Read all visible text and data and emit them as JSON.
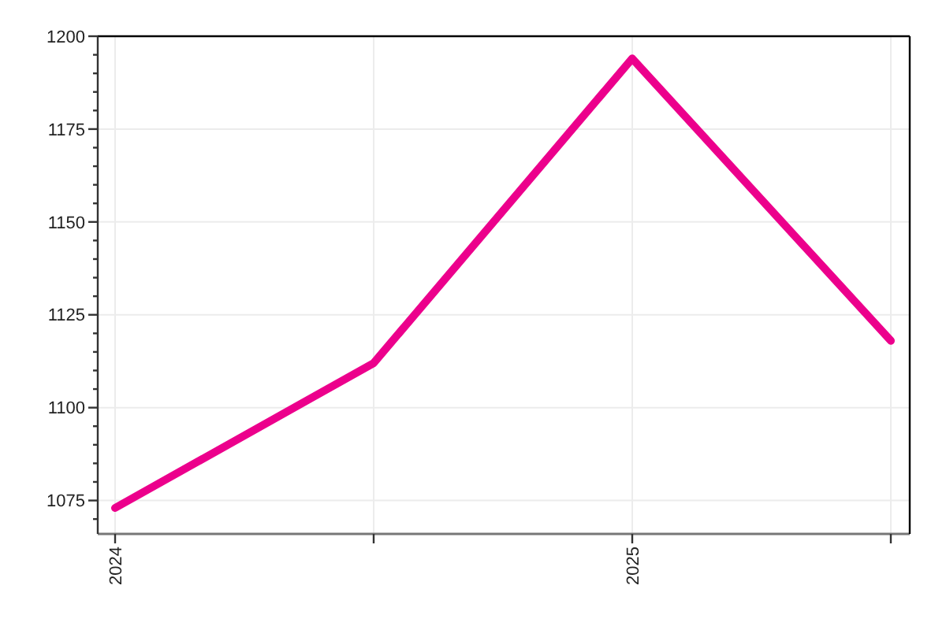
{
  "chart_data": {
    "type": "line",
    "categories": [
      "2024",
      null,
      "2025",
      null
    ],
    "series": [
      {
        "color": "#ec008c",
        "values": [
          1073,
          1112,
          1194,
          1118
        ]
      }
    ],
    "ylim": [
      1066,
      1200
    ],
    "yticks": [
      {
        "value": 1070,
        "label": null
      },
      1075,
      {
        "value": 1080,
        "label": null
      },
      {
        "value": 1085,
        "label": null
      },
      {
        "value": 1090,
        "label": null
      },
      {
        "value": 1095,
        "label": null
      },
      1100,
      {
        "value": 1105,
        "label": null
      },
      {
        "value": 1110,
        "label": null
      },
      {
        "value": 1115,
        "label": null
      },
      {
        "value": 1120,
        "label": null
      },
      1125,
      {
        "value": 1130,
        "label": null
      },
      {
        "value": 1135,
        "label": null
      },
      {
        "value": 1140,
        "label": null
      },
      {
        "value": 1145,
        "label": null
      },
      1150,
      {
        "value": 1155,
        "label": null
      },
      {
        "value": 1160,
        "label": null
      },
      {
        "value": 1165,
        "label": null
      },
      {
        "value": 1170,
        "label": null
      },
      1175,
      {
        "value": 1180,
        "label": null
      },
      {
        "value": 1185,
        "label": null
      },
      {
        "value": 1190,
        "label": null
      },
      {
        "value": 1195,
        "label": null
      },
      1200
    ],
    "grid": true,
    "marker": "none",
    "line_style": "solid"
  }
}
